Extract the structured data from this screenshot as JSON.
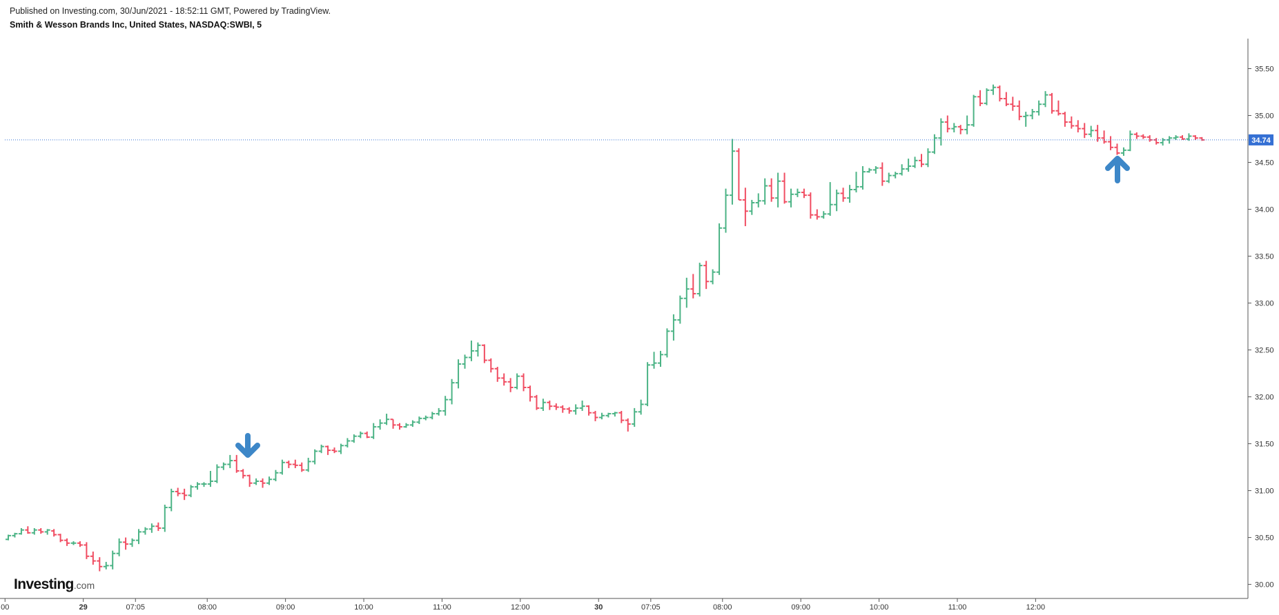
{
  "header": {
    "published": "Published on Investing.com, 30/Jun/2021 - 18:52:11 GMT, Powered by TradingView.",
    "symbol": "Smith & Wesson Brands Inc, United States, NASDAQ:SWBI, 5"
  },
  "logo": {
    "main": "Investing",
    "suffix": ".com"
  },
  "annotations": [
    {
      "icon": "arrow-down-icon",
      "color": "#3d87c8"
    },
    {
      "icon": "arrow-up-icon",
      "color": "#3d87c8"
    }
  ],
  "colors": {
    "up": "#4bb385",
    "down": "#f04c61",
    "last_price_bg": "#3570d4",
    "last_price_line": "#3570d4"
  },
  "chart_data": {
    "type": "ohlc",
    "timeframe": "5",
    "last_price": 34.74,
    "last_price_label": "34.74",
    "ylim": [
      29.85,
      35.82
    ],
    "y_ticks": [
      "30.00",
      "30.50",
      "31.00",
      "31.50",
      "32.00",
      "32.50",
      "33.00",
      "33.50",
      "34.00",
      "34.50",
      "35.00",
      "35.50"
    ],
    "x_ticks": [
      {
        "label": "00",
        "bar": -0.5,
        "bold": false
      },
      {
        "label": "29",
        "bar": 11.5,
        "bold": true
      },
      {
        "label": "07:05",
        "bar": 19.5,
        "bold": false
      },
      {
        "label": "08:00",
        "bar": 30.5,
        "bold": false
      },
      {
        "label": "09:00",
        "bar": 42.5,
        "bold": false
      },
      {
        "label": "10:00",
        "bar": 54.5,
        "bold": false
      },
      {
        "label": "11:00",
        "bar": 66.5,
        "bold": false
      },
      {
        "label": "12:00",
        "bar": 78.5,
        "bold": false
      },
      {
        "label": "30",
        "bar": 90.5,
        "bold": true
      },
      {
        "label": "07:05",
        "bar": 98.5,
        "bold": false
      },
      {
        "label": "08:00",
        "bar": 109.5,
        "bold": false
      },
      {
        "label": "09:00",
        "bar": 121.5,
        "bold": false
      },
      {
        "label": "10:00",
        "bar": 133.5,
        "bold": false
      },
      {
        "label": "11:00",
        "bar": 145.5,
        "bold": false
      },
      {
        "label": "12:00",
        "bar": 157.5,
        "bold": false
      }
    ],
    "bars": [
      [
        30.48,
        30.53,
        30.47,
        30.52
      ],
      [
        30.52,
        30.55,
        30.5,
        30.54
      ],
      [
        30.54,
        30.6,
        30.53,
        30.58
      ],
      [
        30.58,
        30.62,
        30.54,
        30.55
      ],
      [
        30.55,
        30.6,
        30.53,
        30.58
      ],
      [
        30.58,
        30.6,
        30.54,
        30.56
      ],
      [
        30.56,
        30.59,
        30.53,
        30.58
      ],
      [
        30.57,
        30.59,
        30.51,
        30.53
      ],
      [
        30.53,
        30.54,
        30.45,
        30.47
      ],
      [
        30.47,
        30.49,
        30.41,
        30.44
      ],
      [
        30.44,
        30.46,
        30.42,
        30.44
      ],
      [
        30.44,
        30.46,
        30.4,
        30.42
      ],
      [
        30.42,
        30.45,
        30.27,
        30.3
      ],
      [
        30.3,
        30.35,
        30.21,
        30.25
      ],
      [
        30.25,
        30.29,
        30.14,
        30.19
      ],
      [
        30.19,
        30.24,
        30.16,
        30.2
      ],
      [
        30.2,
        30.36,
        30.16,
        30.33
      ],
      [
        30.33,
        30.49,
        30.3,
        30.45
      ],
      [
        30.45,
        30.5,
        30.37,
        30.43
      ],
      [
        30.43,
        30.49,
        30.4,
        30.47
      ],
      [
        30.47,
        30.59,
        30.43,
        30.56
      ],
      [
        30.56,
        30.61,
        30.53,
        30.59
      ],
      [
        30.59,
        30.65,
        30.55,
        30.62
      ],
      [
        30.62,
        30.66,
        30.57,
        30.6
      ],
      [
        30.6,
        30.85,
        30.56,
        30.82
      ],
      [
        30.82,
        31.02,
        30.78,
        30.99
      ],
      [
        30.99,
        31.03,
        30.94,
        30.97
      ],
      [
        30.97,
        31.02,
        30.9,
        30.95
      ],
      [
        30.95,
        31.06,
        30.93,
        31.04
      ],
      [
        31.04,
        31.09,
        31.01,
        31.07
      ],
      [
        31.07,
        31.09,
        31.04,
        31.07
      ],
      [
        31.07,
        31.21,
        31.04,
        31.1
      ],
      [
        31.1,
        31.28,
        31.08,
        31.25
      ],
      [
        31.25,
        31.3,
        31.22,
        31.28
      ],
      [
        31.28,
        31.38,
        31.24,
        31.32
      ],
      [
        31.32,
        31.38,
        31.19,
        31.21
      ],
      [
        31.21,
        31.23,
        31.13,
        31.16
      ],
      [
        31.16,
        31.17,
        31.04,
        31.08
      ],
      [
        31.08,
        31.13,
        31.06,
        31.1
      ],
      [
        31.1,
        31.13,
        31.03,
        31.08
      ],
      [
        31.08,
        31.15,
        31.06,
        31.12
      ],
      [
        31.12,
        31.22,
        31.1,
        31.19
      ],
      [
        31.19,
        31.33,
        31.17,
        31.3
      ],
      [
        31.3,
        31.32,
        31.24,
        31.28
      ],
      [
        31.28,
        31.33,
        31.24,
        31.27
      ],
      [
        31.27,
        31.3,
        31.2,
        31.22
      ],
      [
        31.22,
        31.35,
        31.2,
        31.31
      ],
      [
        31.31,
        31.44,
        31.28,
        31.42
      ],
      [
        31.42,
        31.49,
        31.4,
        31.47
      ],
      [
        31.47,
        31.48,
        31.38,
        31.43
      ],
      [
        31.43,
        31.46,
        31.4,
        31.42
      ],
      [
        31.42,
        31.5,
        31.39,
        31.48
      ],
      [
        31.48,
        31.56,
        31.46,
        31.53
      ],
      [
        31.53,
        31.6,
        31.51,
        31.58
      ],
      [
        31.58,
        31.63,
        31.56,
        31.61
      ],
      [
        31.61,
        31.63,
        31.56,
        31.57
      ],
      [
        31.57,
        31.72,
        31.55,
        31.68
      ],
      [
        31.68,
        31.76,
        31.65,
        31.72
      ],
      [
        31.72,
        31.82,
        31.7,
        31.76
      ],
      [
        31.76,
        31.76,
        31.66,
        31.7
      ],
      [
        31.7,
        31.72,
        31.65,
        31.68
      ],
      [
        31.68,
        31.72,
        31.67,
        31.7
      ],
      [
        31.7,
        31.75,
        31.68,
        31.73
      ],
      [
        31.73,
        31.79,
        31.71,
        31.77
      ],
      [
        31.77,
        31.8,
        31.75,
        31.78
      ],
      [
        31.78,
        31.84,
        31.76,
        31.82
      ],
      [
        31.82,
        31.88,
        31.8,
        31.85
      ],
      [
        31.85,
        32.01,
        31.8,
        31.97
      ],
      [
        31.97,
        32.19,
        31.92,
        32.15
      ],
      [
        32.15,
        32.4,
        32.09,
        32.35
      ],
      [
        32.35,
        32.45,
        32.3,
        32.42
      ],
      [
        32.42,
        32.6,
        32.38,
        32.49
      ],
      [
        32.49,
        32.58,
        32.43,
        32.55
      ],
      [
        32.55,
        32.56,
        32.36,
        32.39
      ],
      [
        32.39,
        32.41,
        32.26,
        32.3
      ],
      [
        32.3,
        32.32,
        32.16,
        32.2
      ],
      [
        32.2,
        32.25,
        32.12,
        32.16
      ],
      [
        32.16,
        32.2,
        32.05,
        32.1
      ],
      [
        32.1,
        32.25,
        32.08,
        32.22
      ],
      [
        32.22,
        32.25,
        32.06,
        32.1
      ],
      [
        32.1,
        32.12,
        31.95,
        32.0
      ],
      [
        32.0,
        32.02,
        31.86,
        31.88
      ],
      [
        31.88,
        31.98,
        31.85,
        31.94
      ],
      [
        31.94,
        31.96,
        31.86,
        31.9
      ],
      [
        31.9,
        31.93,
        31.86,
        31.89
      ],
      [
        31.89,
        31.91,
        31.83,
        31.87
      ],
      [
        31.87,
        31.89,
        31.82,
        31.85
      ],
      [
        31.85,
        31.92,
        31.81,
        31.88
      ],
      [
        31.88,
        31.96,
        31.85,
        31.9
      ],
      [
        31.9,
        31.91,
        31.8,
        31.83
      ],
      [
        31.83,
        31.85,
        31.74,
        31.78
      ],
      [
        31.78,
        31.83,
        31.76,
        31.8
      ],
      [
        31.8,
        31.83,
        31.78,
        31.82
      ],
      [
        31.82,
        31.84,
        31.79,
        31.83
      ],
      [
        31.83,
        31.85,
        31.72,
        31.75
      ],
      [
        31.75,
        31.77,
        31.63,
        31.71
      ],
      [
        31.71,
        31.88,
        31.68,
        31.84
      ],
      [
        31.84,
        31.97,
        31.81,
        31.92
      ],
      [
        31.92,
        32.37,
        31.9,
        32.34
      ],
      [
        32.34,
        32.48,
        32.3,
        32.36
      ],
      [
        32.36,
        32.49,
        32.32,
        32.45
      ],
      [
        32.45,
        32.73,
        32.42,
        32.7
      ],
      [
        32.7,
        32.88,
        32.6,
        32.82
      ],
      [
        32.82,
        33.08,
        32.78,
        33.05
      ],
      [
        33.05,
        33.27,
        32.95,
        33.15
      ],
      [
        33.15,
        33.31,
        33.05,
        33.1
      ],
      [
        33.1,
        33.43,
        33.07,
        33.4
      ],
      [
        33.4,
        33.45,
        33.15,
        33.23
      ],
      [
        33.23,
        33.36,
        33.2,
        33.33
      ],
      [
        33.33,
        33.85,
        33.3,
        33.8
      ],
      [
        33.8,
        34.22,
        33.75,
        34.15
      ],
      [
        34.15,
        34.75,
        34.05,
        34.62
      ],
      [
        34.62,
        34.65,
        34.1,
        34.1
      ],
      [
        34.1,
        34.23,
        33.82,
        33.98
      ],
      [
        33.98,
        34.1,
        33.94,
        34.07
      ],
      [
        34.07,
        34.17,
        34.02,
        34.09
      ],
      [
        34.09,
        34.33,
        34.05,
        34.25
      ],
      [
        34.25,
        34.33,
        34.08,
        34.12
      ],
      [
        34.12,
        34.39,
        34.02,
        34.3
      ],
      [
        34.3,
        34.39,
        34.06,
        34.08
      ],
      [
        34.08,
        34.22,
        34.02,
        34.16
      ],
      [
        34.16,
        34.22,
        34.13,
        34.18
      ],
      [
        34.18,
        34.22,
        34.12,
        34.15
      ],
      [
        34.15,
        34.18,
        33.9,
        33.94
      ],
      [
        33.94,
        34.0,
        33.89,
        33.92
      ],
      [
        33.92,
        33.98,
        33.9,
        33.95
      ],
      [
        33.95,
        34.29,
        33.93,
        34.05
      ],
      [
        34.05,
        34.21,
        33.98,
        34.17
      ],
      [
        34.17,
        34.23,
        34.08,
        34.12
      ],
      [
        34.12,
        34.26,
        34.07,
        34.21
      ],
      [
        34.21,
        34.4,
        34.18,
        34.24
      ],
      [
        34.24,
        34.46,
        34.21,
        34.4
      ],
      [
        34.4,
        34.44,
        34.39,
        34.42
      ],
      [
        34.42,
        34.46,
        34.38,
        34.44
      ],
      [
        34.44,
        34.5,
        34.25,
        34.3
      ],
      [
        34.3,
        34.39,
        34.28,
        34.36
      ],
      [
        34.36,
        34.4,
        34.33,
        34.38
      ],
      [
        34.38,
        34.48,
        34.36,
        34.43
      ],
      [
        34.43,
        34.54,
        34.4,
        34.46
      ],
      [
        34.46,
        34.56,
        34.44,
        34.52
      ],
      [
        34.52,
        34.59,
        34.45,
        34.48
      ],
      [
        34.48,
        34.65,
        34.45,
        34.61
      ],
      [
        34.61,
        34.8,
        34.59,
        34.76
      ],
      [
        34.76,
        34.97,
        34.68,
        34.93
      ],
      [
        34.93,
        35.0,
        34.82,
        34.86
      ],
      [
        34.86,
        34.92,
        34.82,
        34.88
      ],
      [
        34.88,
        34.9,
        34.8,
        34.85
      ],
      [
        34.85,
        35.0,
        34.8,
        34.9
      ],
      [
        34.9,
        35.22,
        34.88,
        35.2
      ],
      [
        35.2,
        35.27,
        35.1,
        35.13
      ],
      [
        35.13,
        35.29,
        35.11,
        35.27
      ],
      [
        35.27,
        35.33,
        35.22,
        35.3
      ],
      [
        35.3,
        35.32,
        35.15,
        35.18
      ],
      [
        35.18,
        35.25,
        35.1,
        35.12
      ],
      [
        35.12,
        35.2,
        35.05,
        35.1
      ],
      [
        35.1,
        35.16,
        34.95,
        34.99
      ],
      [
        34.99,
        35.04,
        34.88,
        35.0
      ],
      [
        35.0,
        35.07,
        34.96,
        35.04
      ],
      [
        35.04,
        35.16,
        35.0,
        35.12
      ],
      [
        35.12,
        35.26,
        35.09,
        35.22
      ],
      [
        35.22,
        35.24,
        35.02,
        35.05
      ],
      [
        35.05,
        35.16,
        35.0,
        35.02
      ],
      [
        35.02,
        35.04,
        34.88,
        34.93
      ],
      [
        34.93,
        34.99,
        34.86,
        34.89
      ],
      [
        34.89,
        34.95,
        34.82,
        34.86
      ],
      [
        34.86,
        34.92,
        34.76,
        34.8
      ],
      [
        34.8,
        34.89,
        34.77,
        34.84
      ],
      [
        34.84,
        34.9,
        34.72,
        34.76
      ],
      [
        34.76,
        34.84,
        34.7,
        34.72
      ],
      [
        34.72,
        34.78,
        34.63,
        34.66
      ],
      [
        34.66,
        34.7,
        34.58,
        34.6
      ],
      [
        34.6,
        34.66,
        34.57,
        34.63
      ],
      [
        34.63,
        34.84,
        34.62,
        34.8
      ],
      [
        34.8,
        34.82,
        34.75,
        34.78
      ],
      [
        34.78,
        34.8,
        34.75,
        34.77
      ],
      [
        34.77,
        34.79,
        34.72,
        34.74
      ],
      [
        34.74,
        34.76,
        34.69,
        34.71
      ],
      [
        34.71,
        34.76,
        34.68,
        34.74
      ],
      [
        34.74,
        34.78,
        34.7,
        34.76
      ],
      [
        34.76,
        34.79,
        34.74,
        34.77
      ],
      [
        34.77,
        34.79,
        34.74,
        34.75
      ],
      [
        34.75,
        34.81,
        34.73,
        34.78
      ],
      [
        34.78,
        34.79,
        34.74,
        34.76
      ],
      [
        34.76,
        34.77,
        34.73,
        34.74
      ]
    ]
  }
}
